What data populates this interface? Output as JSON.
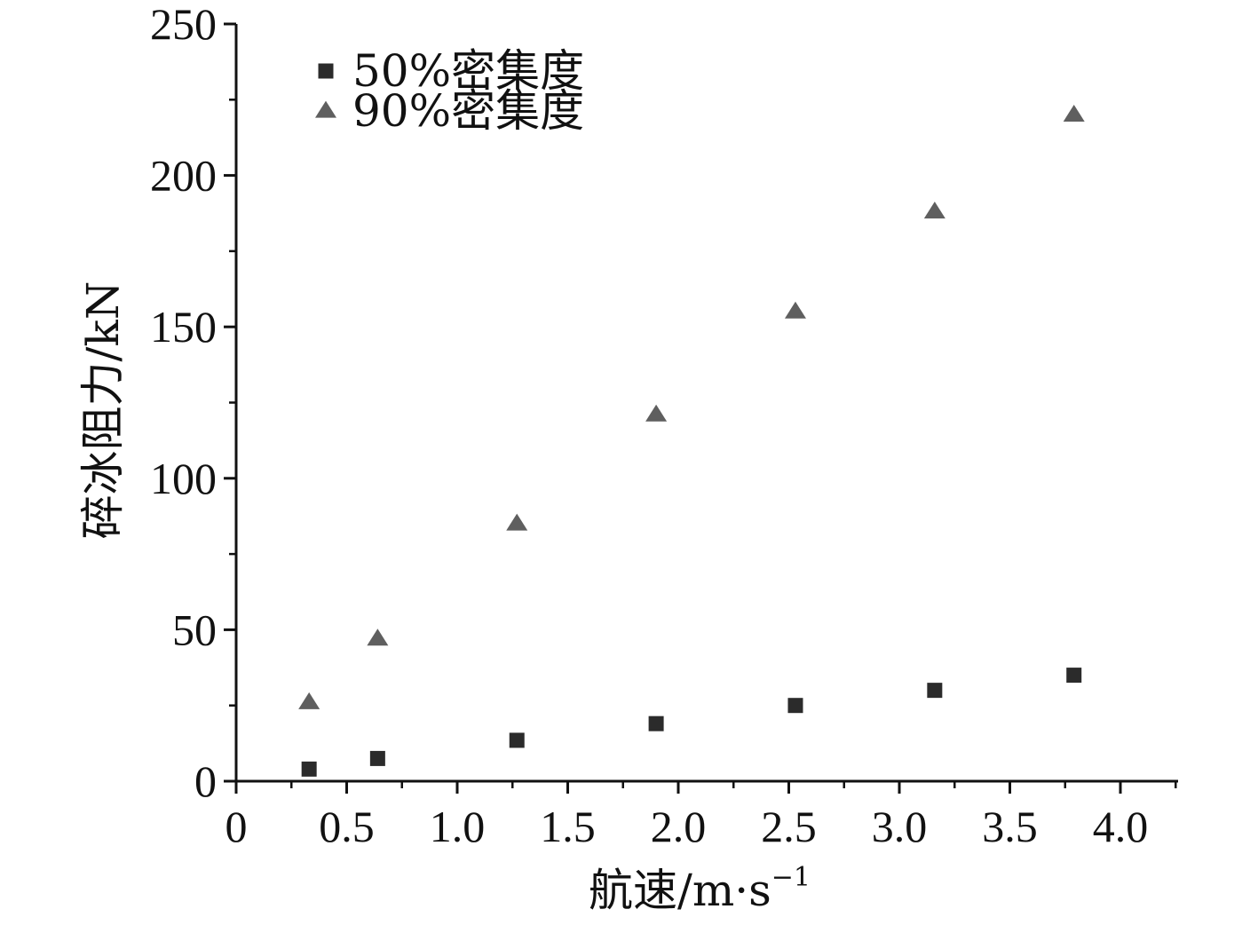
{
  "chart_data": {
    "type": "scatter",
    "xlabel": "航速/m·s",
    "xlabel_sup": "−1",
    "ylabel": "碎冰阻力/kN",
    "xlim": [
      0,
      4.25
    ],
    "ylim": [
      0,
      250
    ],
    "x_ticks": [
      "0",
      "0.5",
      "1.0",
      "1.5",
      "2.0",
      "2.5",
      "3.0",
      "3.5",
      "4.0"
    ],
    "y_ticks": [
      "0",
      "50",
      "100",
      "150",
      "200",
      "250"
    ],
    "legend_position": "top-left",
    "series": [
      {
        "name": "50%密集度",
        "marker": "square",
        "color": "#2b2b2b",
        "x": [
          0.33,
          0.64,
          1.27,
          1.9,
          2.53,
          3.16,
          3.79
        ],
        "y": [
          4,
          7.5,
          13.5,
          19,
          25,
          30,
          35
        ]
      },
      {
        "name": "90%密集度",
        "marker": "triangle",
        "color": "#5f5f5f",
        "x": [
          0.33,
          0.64,
          1.27,
          1.9,
          2.53,
          3.16,
          3.79
        ],
        "y": [
          26,
          47,
          85,
          121,
          155,
          188,
          220
        ]
      }
    ]
  }
}
